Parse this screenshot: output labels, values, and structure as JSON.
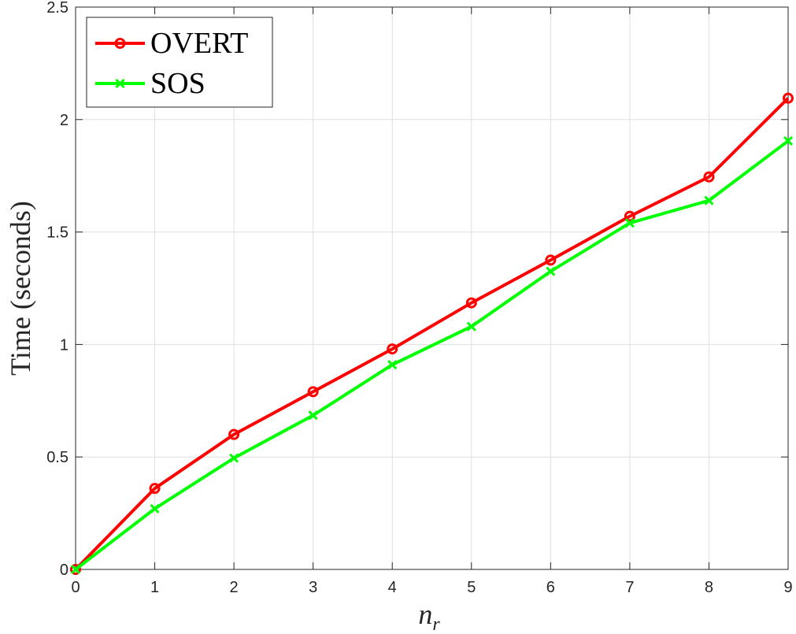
{
  "chart_data": {
    "type": "line",
    "title": "",
    "xlabel": "n",
    "xlabel_subscript": "r",
    "ylabel": "Time (seconds)",
    "x": [
      0,
      1,
      2,
      3,
      4,
      5,
      6,
      7,
      8,
      9
    ],
    "xlim": [
      0,
      9
    ],
    "ylim": [
      0,
      2.5
    ],
    "xticks": [
      "0",
      "1",
      "2",
      "3",
      "4",
      "5",
      "6",
      "7",
      "8",
      "9"
    ],
    "yticks": [
      "0",
      "0.5",
      "1",
      "1.5",
      "2",
      "2.5"
    ],
    "grid": true,
    "legend_position": "top-left",
    "series": [
      {
        "name": "OVERT",
        "color": "#ff0000",
        "marker": "circle",
        "values": [
          0.0,
          0.36,
          0.6,
          0.79,
          0.98,
          1.185,
          1.375,
          1.57,
          1.745,
          2.095
        ]
      },
      {
        "name": "SOS",
        "color": "#00ff00",
        "marker": "x",
        "values": [
          0.0,
          0.27,
          0.495,
          0.685,
          0.91,
          1.08,
          1.325,
          1.54,
          1.64,
          1.905
        ]
      }
    ]
  }
}
